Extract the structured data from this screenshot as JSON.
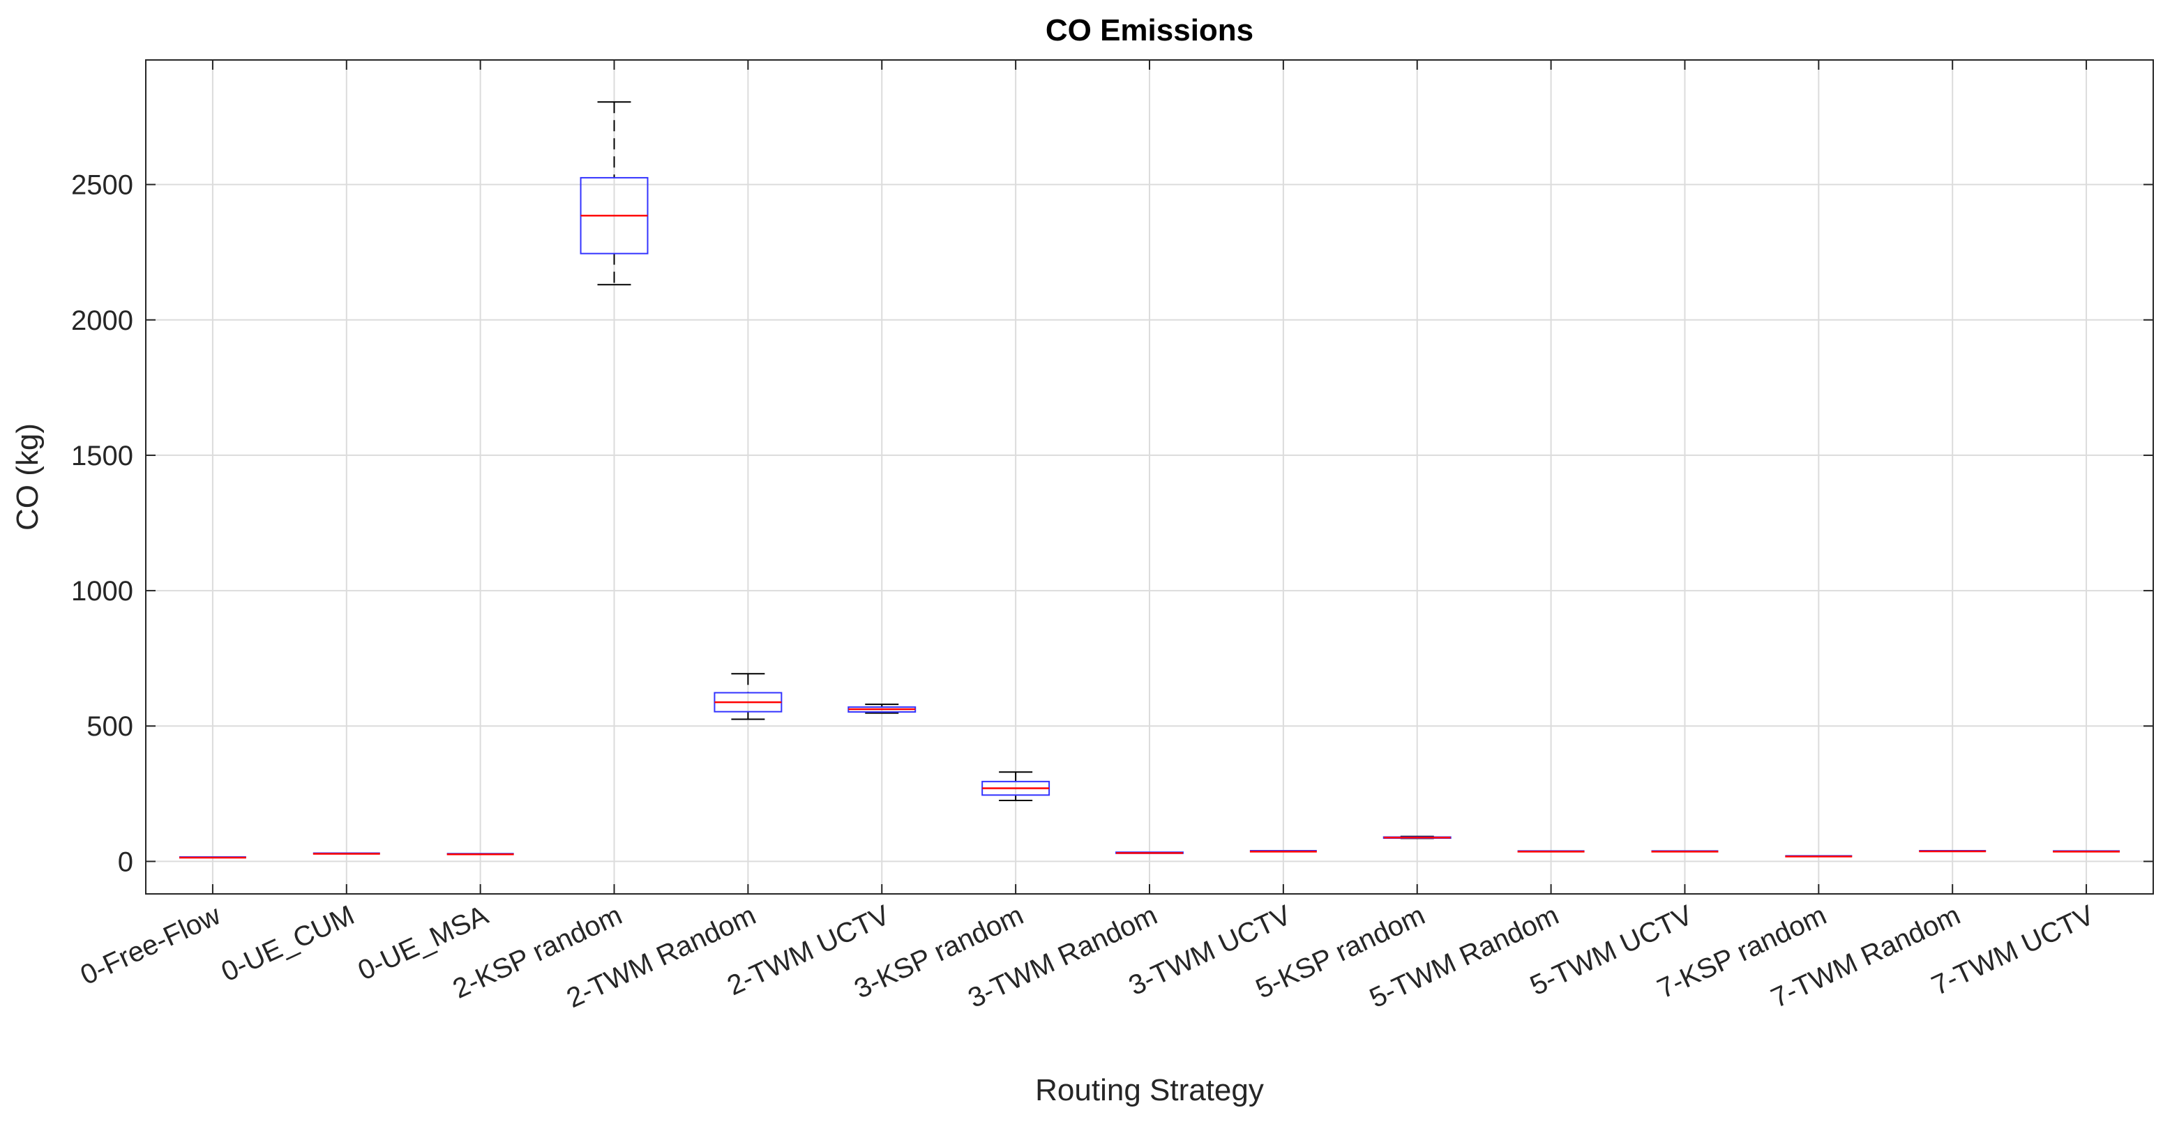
{
  "chart_data": {
    "type": "box",
    "title": "CO Emissions",
    "xlabel": "Routing Strategy",
    "ylabel": "CO (kg)",
    "ylim": [
      -120,
      2960
    ],
    "yticks": [
      0,
      500,
      1000,
      1500,
      2000,
      2500
    ],
    "grid": true,
    "categories": [
      "0-Free-Flow",
      "0-UE_CUM",
      "0-UE_MSA",
      "2-KSP random",
      "2-TWM Random",
      "2-TWM UCTV",
      "3-KSP random",
      "3-TWM Random",
      "3-TWM UCTV",
      "5-KSP random",
      "5-TWM Random",
      "5-TWM UCTV",
      "7-KSP random",
      "7-TWM Random",
      "7-TWM UCTV"
    ],
    "boxes": [
      {
        "min": 14,
        "q1": 14,
        "median": 14,
        "q3": 14,
        "max": 14
      },
      {
        "min": 28,
        "q1": 28,
        "median": 28,
        "q3": 28,
        "max": 28
      },
      {
        "min": 26,
        "q1": 26,
        "median": 26,
        "q3": 26,
        "max": 26
      },
      {
        "min": 2130,
        "q1": 2245,
        "median": 2385,
        "q3": 2525,
        "max": 2805
      },
      {
        "min": 525,
        "q1": 553,
        "median": 588,
        "q3": 623,
        "max": 693
      },
      {
        "min": 548,
        "q1": 552,
        "median": 562,
        "q3": 570,
        "max": 580
      },
      {
        "min": 225,
        "q1": 245,
        "median": 270,
        "q3": 295,
        "max": 330
      },
      {
        "min": 30,
        "q1": 30,
        "median": 31,
        "q3": 34,
        "max": 34
      },
      {
        "min": 36,
        "q1": 36,
        "median": 36,
        "q3": 37,
        "max": 37
      },
      {
        "min": 85,
        "q1": 86,
        "median": 88,
        "q3": 90,
        "max": 92
      },
      {
        "min": 35,
        "q1": 35,
        "median": 36,
        "q3": 36,
        "max": 36
      },
      {
        "min": 36,
        "q1": 36,
        "median": 36,
        "q3": 36,
        "max": 36
      },
      {
        "min": 17,
        "q1": 17,
        "median": 18,
        "q3": 18,
        "max": 18
      },
      {
        "min": 36,
        "q1": 36,
        "median": 37,
        "q3": 37,
        "max": 37
      },
      {
        "min": 36,
        "q1": 36,
        "median": 36,
        "q3": 36,
        "max": 36
      }
    ],
    "colors": {
      "box": "#3333ff",
      "median": "#ff0000",
      "whisker": "#000000",
      "grid": "#dcdcdc",
      "axis": "#262626"
    }
  }
}
